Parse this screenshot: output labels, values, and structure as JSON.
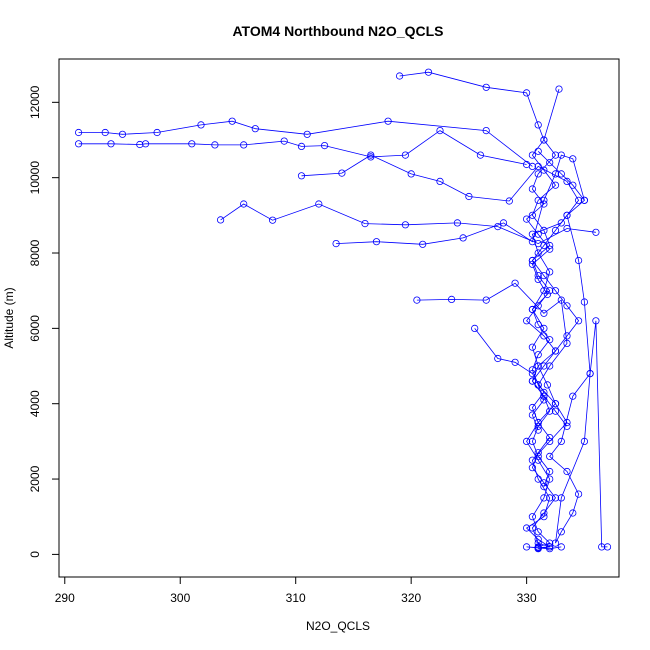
{
  "chart_data": {
    "type": "scatter",
    "title": "ATOM4 Northbound N2O_QCLS",
    "xlabel": "N2O_QCLS",
    "ylabel": "Altitude (m)",
    "xlim": [
      289.5,
      338
    ],
    "ylim": [
      -600,
      13150
    ],
    "xticks": [
      "290",
      "300",
      "310",
      "320",
      "330"
    ],
    "yticks": [
      "0",
      "2000",
      "4000",
      "6000",
      "8000",
      "10000",
      "12000"
    ],
    "grid": false,
    "legend": "none",
    "point_style": "open-circle-with-connecting-lines",
    "series_color": "#0000ff",
    "series": [
      {
        "x": [
          291.2,
          293.5,
          295.0,
          298.0,
          301.8,
          304.5,
          306.5,
          311.0,
          318.0,
          326.5,
          330.5
        ],
        "y": [
          11200,
          11200,
          11150,
          11200,
          11400,
          11500,
          11300,
          11150,
          11500,
          11250,
          10300
        ]
      },
      {
        "x": [
          291.2,
          294.0,
          296.5,
          297.0,
          301.0,
          303.0,
          305.5,
          309.0,
          310.5,
          312.5,
          316.5,
          319.5,
          322.5,
          326.0,
          330.0
        ],
        "y": [
          10900,
          10900,
          10880,
          10900,
          10900,
          10870,
          10870,
          10970,
          10830,
          10850,
          10550,
          10600,
          11250,
          10600,
          10350
        ]
      },
      {
        "x": [
          303.5,
          305.5,
          308.0,
          312.0,
          316.0,
          319.5,
          324.0,
          327.5,
          331.0,
          333.5,
          336.0
        ],
        "y": [
          8880,
          9300,
          8870,
          9300,
          8780,
          8750,
          8800,
          8700,
          8250,
          8650,
          8550
        ]
      },
      {
        "x": [
          313.5,
          317.0,
          321.0,
          324.5,
          328.0,
          330.5,
          331.5,
          332.5,
          333.0,
          334.0,
          335.0
        ],
        "y": [
          8250,
          8300,
          8230,
          8400,
          8800,
          8300,
          9400,
          10100,
          10600,
          10500,
          9400
        ]
      },
      {
        "x": [
          310.5,
          314.0,
          316.5,
          320.0,
          322.5,
          325.0,
          328.5,
          331.0,
          333.5,
          334.5,
          333.0,
          330.5,
          331.0,
          332.0,
          331.5,
          330.5,
          331.5,
          330.5,
          331.0,
          331.8,
          332.5,
          331.0,
          330.0,
          331.0,
          332.0,
          331.5,
          330.5,
          331.0,
          332.0,
          331.0
        ],
        "y": [
          10050,
          10120,
          10600,
          10100,
          9900,
          9500,
          9380,
          10300,
          9900,
          9400,
          8800,
          8500,
          8000,
          7500,
          7000,
          6500,
          6000,
          5500,
          5000,
          4500,
          4000,
          3500,
          3000,
          2500,
          2000,
          1500,
          1000,
          600,
          300,
          200
        ]
      },
      {
        "x": [
          320.5,
          323.5,
          326.5,
          329.0,
          331.5,
          333.0,
          333.5,
          332.0,
          331.0,
          332.5,
          333.5,
          332.0,
          330.5,
          331.0,
          332.0,
          331.5,
          330.0,
          331.0,
          332.0,
          331.0
        ],
        "y": [
          6750,
          6770,
          6750,
          7200,
          6400,
          6750,
          5600,
          5000,
          4500,
          4000,
          3500,
          3000,
          2500,
          2000,
          1500,
          1000,
          700,
          400,
          200,
          150
        ]
      },
      {
        "x": [
          319.0,
          321.5,
          326.5,
          330.0,
          331.0,
          331.5,
          332.5,
          331.0,
          330.5,
          331.5,
          330.0,
          331.0,
          332.0,
          330.5,
          331.0,
          331.8,
          330.5,
          331.0,
          332.0,
          331.0,
          330.5,
          331.0,
          331.5,
          330.5,
          331.0
        ],
        "y": [
          12700,
          12800,
          12400,
          12250,
          11400,
          11000,
          10600,
          10100,
          9700,
          9300,
          8900,
          8500,
          8100,
          7700,
          7300,
          6900,
          6500,
          6100,
          5700,
          5300,
          4900,
          4500,
          4100,
          3700,
          3300
        ]
      },
      {
        "x": [
          332.8,
          331.5,
          330.5,
          331.5,
          332.5,
          331.0,
          330.5,
          331.5,
          332.0,
          330.5,
          331.0,
          332.0,
          331.0,
          330.0,
          331.5,
          332.5,
          331.0,
          330.5,
          331.5,
          332.0,
          331.0,
          330.5,
          331.0,
          332.0,
          331.5
        ],
        "y": [
          12350,
          11000,
          10600,
          10200,
          9800,
          9400,
          9000,
          8600,
          8200,
          7800,
          7400,
          7000,
          6600,
          6200,
          5800,
          5400,
          5000,
          4600,
          4200,
          3800,
          3400,
          3000,
          2600,
          2200,
          1800
        ]
      },
      {
        "x": [
          325.5,
          327.5,
          329.0,
          330.5,
          331.5,
          330.5,
          331.0,
          332.0,
          331.0,
          330.5,
          331.5,
          332.5,
          331.5,
          330.5,
          331.0,
          332.0,
          331.0,
          330.0,
          331.0,
          332.0,
          333.0
        ],
        "y": [
          6000,
          5200,
          5100,
          4800,
          4300,
          3900,
          3500,
          3100,
          2700,
          2300,
          1900,
          1500,
          1100,
          700,
          300,
          200,
          180,
          200,
          170,
          150,
          200
        ]
      },
      {
        "x": [
          333.5,
          334.5,
          335.0,
          335.5,
          334.0,
          333.0,
          332.0,
          333.5,
          334.5,
          334.0,
          333.0,
          332.5,
          333.0,
          335.0,
          335.5,
          336.0,
          336.5,
          337.0
        ],
        "y": [
          9000,
          7800,
          6700,
          4800,
          4200,
          3000,
          2600,
          2200,
          1600,
          1100,
          600,
          300,
          1500,
          3000,
          4800,
          6200,
          200,
          200
        ]
      },
      {
        "x": [
          331.0,
          332.0,
          333.0,
          334.0,
          335.0,
          333.5,
          332.5,
          331.5,
          330.5,
          331.5,
          332.5,
          333.5,
          334.5,
          333.5,
          332.5,
          331.5,
          330.5,
          331.5,
          332.5,
          333.5
        ],
        "y": [
          10700,
          10400,
          10100,
          9800,
          9400,
          9000,
          8600,
          8200,
          7800,
          7400,
          7000,
          6600,
          6200,
          5800,
          5400,
          5000,
          4600,
          4200,
          3800,
          3400
        ]
      }
    ]
  }
}
